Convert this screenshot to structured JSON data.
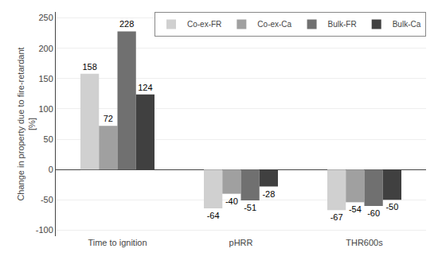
{
  "chart_data": {
    "type": "bar",
    "categories": [
      "Time to ignition",
      "pHRR",
      "THR600s"
    ],
    "series": [
      {
        "name": "Co-ex-FR",
        "color": "#d0d0d0",
        "values": [
          158,
          -64,
          -67
        ]
      },
      {
        "name": "Co-ex-Ca",
        "color": "#a0a0a0",
        "values": [
          72,
          -40,
          -54
        ]
      },
      {
        "name": "Bulk-FR",
        "color": "#707070",
        "values": [
          228,
          -51,
          -60
        ]
      },
      {
        "name": "Bulk-Ca",
        "color": "#404040",
        "values": [
          124,
          -28,
          -50
        ]
      }
    ],
    "ylabel": "Change in property due to fire-retardant\n[%]",
    "ylim": [
      -110,
      260
    ],
    "yticks": [
      -100,
      -50,
      0,
      50,
      100,
      150,
      200,
      250
    ],
    "grid": true,
    "legend": "upper right",
    "data_labels": true
  }
}
